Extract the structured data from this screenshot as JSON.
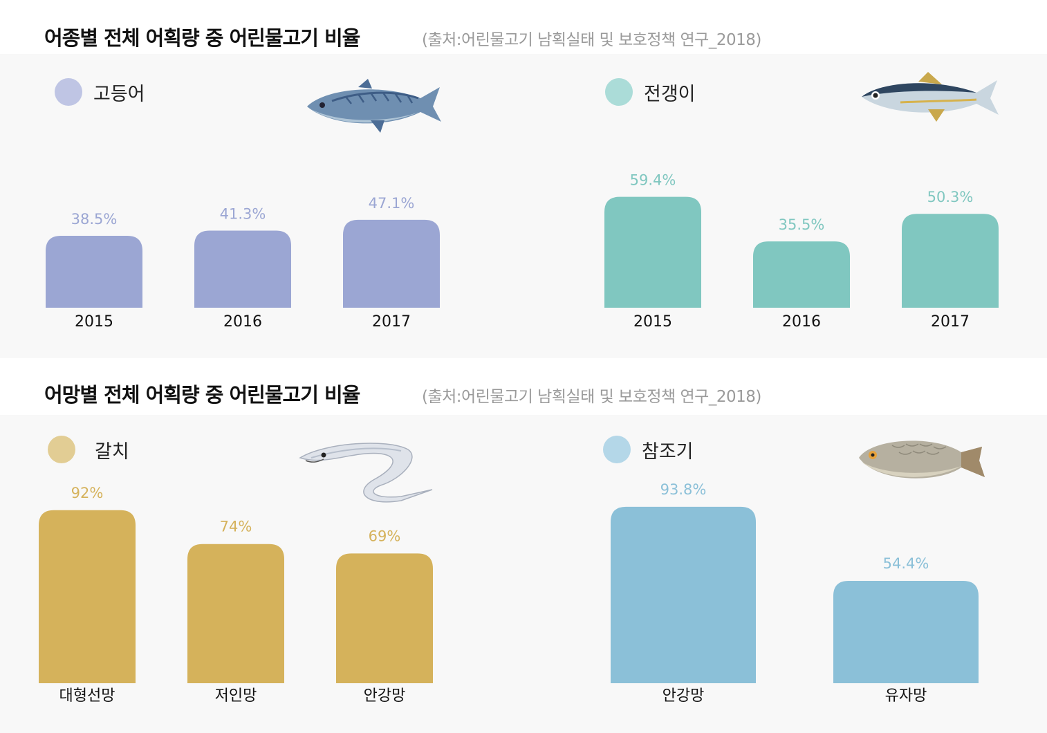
{
  "sections": [
    {
      "title": "어종별 전체 어획량 중 어린물고기 비율",
      "source": "(출처:어린물고기 남획실태 및 보호정책 연구_2018)"
    },
    {
      "title": "어망별 전체 어획량 중 어린물고기 비율",
      "source": "(출처:어린물고기 남획실태 및 보호정책 연구_2018)"
    }
  ],
  "colors": {
    "mackerel": "#9ba6d3",
    "horse_mackerel": "#80c7c0",
    "hairtail": "#d5b25b",
    "croaker": "#8bc0d8"
  },
  "icons": {
    "mackerel": "mackerel-fish-icon",
    "horse_mackerel": "horse-mackerel-fish-icon",
    "hairtail": "hairtail-fish-icon",
    "croaker": "yellow-croaker-fish-icon"
  },
  "chart_data": [
    {
      "type": "bar",
      "legend": "고등어",
      "categories": [
        "2015",
        "2016",
        "2017"
      ],
      "values": [
        38.5,
        41.3,
        47.1
      ],
      "value_labels": [
        "38.5%",
        "41.3%",
        "47.1%"
      ],
      "ylim": [
        0,
        100
      ],
      "color": "#9ba6d3"
    },
    {
      "type": "bar",
      "legend": "전갱이",
      "categories": [
        "2015",
        "2016",
        "2017"
      ],
      "values": [
        59.4,
        35.5,
        50.3
      ],
      "value_labels": [
        "59.4%",
        "35.5%",
        "50.3%"
      ],
      "ylim": [
        0,
        100
      ],
      "color": "#80c7c0"
    },
    {
      "type": "bar",
      "legend": "갈치",
      "categories": [
        "대형선망",
        "저인망",
        "안강망"
      ],
      "values": [
        92,
        74,
        69
      ],
      "value_labels": [
        "92%",
        "74%",
        "69%"
      ],
      "ylim": [
        0,
        100
      ],
      "color": "#d5b25b"
    },
    {
      "type": "bar",
      "legend": "참조기",
      "categories": [
        "안강망",
        "유자망"
      ],
      "values": [
        93.8,
        54.4
      ],
      "value_labels": [
        "93.8%",
        "54.4%"
      ],
      "ylim": [
        0,
        100
      ],
      "color": "#8bc0d8"
    }
  ]
}
